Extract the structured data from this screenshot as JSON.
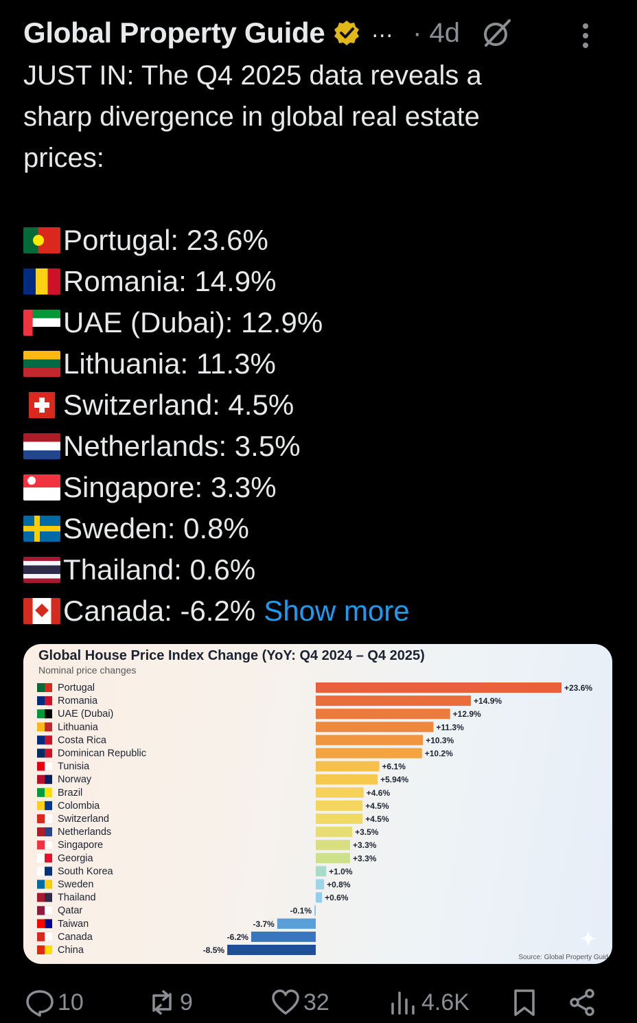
{
  "post": {
    "author": "Global Property Guide",
    "inline_more": "...",
    "time": "· 4d",
    "body_lines": [
      "JUST IN: The Q4 2025 data reveals a",
      "sharp divergence in global real estate",
      "prices:"
    ],
    "countries": [
      {
        "text": "Portugal: 23.6%",
        "flag": "portugal"
      },
      {
        "text": "Romania: 14.9%",
        "flag": "romania"
      },
      {
        "text": "UAE (Dubai): 12.9%",
        "flag": "uae"
      },
      {
        "text": "Lithuania: 11.3%",
        "flag": "lithuania"
      },
      {
        "text": "Switzerland: 4.5%",
        "flag": "switzerland"
      },
      {
        "text": "Netherlands: 3.5%",
        "flag": "netherlands"
      },
      {
        "text": "Singapore: 3.3%",
        "flag": "singapore"
      },
      {
        "text": "Sweden: 0.8%",
        "flag": "sweden"
      },
      {
        "text": "Thailand: 0.6%",
        "flag": "thailand"
      },
      {
        "text": "Canada: -6.2%",
        "flag": "canada"
      }
    ],
    "show_more": "Show more"
  },
  "card": {
    "title": "Global House Price Index Change (YoY: Q4 2024 – Q4 2025)",
    "subtitle": "Nominal price changes",
    "source": "Source: Global Property Guid"
  },
  "chart_data": {
    "type": "bar",
    "orientation": "horizontal",
    "categories": [
      "Portugal",
      "Romania",
      "UAE (Dubai)",
      "Lithuania",
      "Costa Rica",
      "Dominican Republic",
      "Tunisia",
      "Norway",
      "Brazil",
      "Colombia",
      "Switzerland",
      "Netherlands",
      "Singapore",
      "Georgia",
      "South Korea",
      "Sweden",
      "Thailand",
      "Qatar",
      "Taiwan",
      "Canada",
      "China"
    ],
    "values": [
      23.6,
      14.9,
      12.9,
      11.3,
      10.3,
      10.2,
      6.1,
      5.94,
      4.6,
      4.5,
      4.5,
      3.5,
      3.3,
      3.3,
      1.0,
      0.8,
      0.6,
      -0.1,
      -3.7,
      -6.2,
      -8.5
    ],
    "labels": [
      "+23.6%",
      "+14.9%",
      "+12.9%",
      "+11.3%",
      "+10.3%",
      "+10.2%",
      "+6.1%",
      "+5.94%",
      "+4.6%",
      "+4.5%",
      "+4.5%",
      "+3.5%",
      "+3.3%",
      "+3.3%",
      "+1.0%",
      "+0.8%",
      "+0.6%",
      "-0.1%",
      "-3.7%",
      "-6.2%",
      "-8.5%"
    ],
    "colors": [
      "#e8603c",
      "#ea6e3c",
      "#ec7a3c",
      "#ee883d",
      "#f1963e",
      "#f3a33f",
      "#f6c04a",
      "#f6c84d",
      "#f6d25a",
      "#f4d65e",
      "#f1d965",
      "#e6de74",
      "#d9df80",
      "#cde08a",
      "#a7dcc8",
      "#9fd4ea",
      "#93cdee",
      "#8ec5ea",
      "#5a9fd8",
      "#3a76c0",
      "#1f4f98"
    ],
    "xlim": [
      -8.5,
      23.6
    ],
    "grid": false,
    "legend": "none"
  },
  "actions": {
    "replies": "10",
    "reposts": "9",
    "likes": "32",
    "views": "4.6K"
  }
}
